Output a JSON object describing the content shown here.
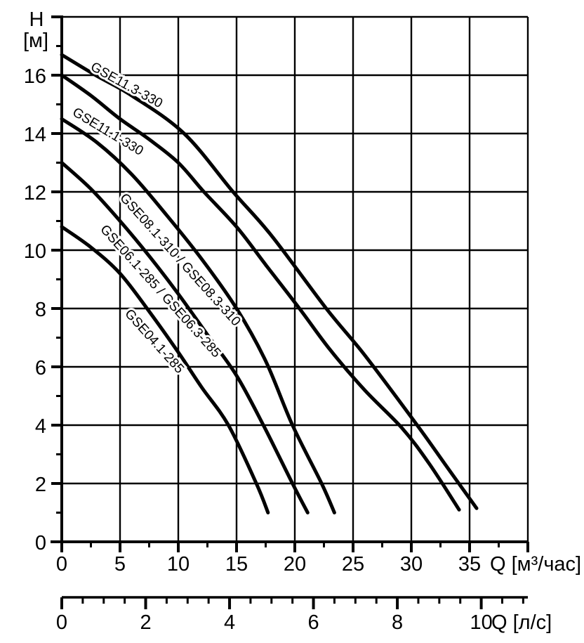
{
  "chart_data": {
    "type": "line",
    "title": "",
    "background": "#ffffff",
    "line_color": "#000000",
    "grid": true,
    "y_axis": {
      "title_line1": "H",
      "title_line2": "[м]",
      "min": 0,
      "max": 18,
      "major_step": 2,
      "minor_step": 1,
      "tick_labels": [
        "0",
        "2",
        "4",
        "6",
        "8",
        "10",
        "12",
        "14",
        "16"
      ]
    },
    "x_axis": {
      "title": "Q [м³/час]",
      "min": 0,
      "max": 40,
      "major_step": 5,
      "minor_step": 2.5,
      "tick_labels": [
        "0",
        "5",
        "10",
        "15",
        "20",
        "25",
        "30",
        "35"
      ]
    },
    "x_axis2": {
      "title": "Q [л/с]",
      "min": 0,
      "max": 11.11,
      "major_step": 2,
      "minor_step": 0.5,
      "unit_ratio": 3.6,
      "tick_labels": [
        "0",
        "2",
        "4",
        "6",
        "8",
        "10"
      ]
    },
    "series": [
      {
        "name": "GSE11.3-330",
        "points": [
          [
            0,
            16.7
          ],
          [
            2.9,
            16.0
          ],
          [
            6,
            15.3
          ],
          [
            10.5,
            14.0
          ],
          [
            14.7,
            12.0
          ],
          [
            18,
            10.5
          ],
          [
            22.7,
            8.0
          ],
          [
            26,
            6.4
          ],
          [
            30.5,
            4.0
          ],
          [
            33,
            2.6
          ],
          [
            35.6,
            1.15
          ]
        ],
        "label": {
          "text": "GSE11.3-330",
          "q": 2.4,
          "h": 16.2,
          "angle": 29
        }
      },
      {
        "name": "GSE11.1-330",
        "points": [
          [
            0,
            16.0
          ],
          [
            2.5,
            15.3
          ],
          [
            5,
            14.5
          ],
          [
            7.5,
            13.8
          ],
          [
            10,
            13.0
          ],
          [
            12.2,
            12.0
          ],
          [
            15,
            10.8
          ],
          [
            17.5,
            9.5
          ],
          [
            20.4,
            8.0
          ],
          [
            23,
            6.6
          ],
          [
            26,
            5.2
          ],
          [
            29.2,
            3.9
          ],
          [
            31.5,
            2.7
          ],
          [
            34.1,
            1.1
          ]
        ],
        "label": {
          "text": "GSE11.1-330",
          "q": 0.84,
          "h": 14.65,
          "angle": 31
        }
      },
      {
        "name": "GSE08.1-310 / GSE08.3-310",
        "points": [
          [
            0,
            14.5
          ],
          [
            3,
            13.7
          ],
          [
            6,
            12.6
          ],
          [
            9,
            11.2
          ],
          [
            12,
            9.7
          ],
          [
            15,
            8.0
          ],
          [
            17.5,
            6.2
          ],
          [
            19.8,
            4.0
          ],
          [
            22.3,
            2.0
          ],
          [
            23.4,
            1.0
          ]
        ],
        "label": {
          "text": "GSE08.1-310 / GSE08.3-310",
          "q": 4.94,
          "h": 11.78,
          "angle": 48
        }
      },
      {
        "name": "GSE06.1-285 / GSE06.3-285",
        "points": [
          [
            0,
            13.0
          ],
          [
            2.5,
            12.1
          ],
          [
            5,
            11.0
          ],
          [
            7.5,
            9.8
          ],
          [
            10,
            8.5
          ],
          [
            12.5,
            7.1
          ],
          [
            15,
            5.7
          ],
          [
            17.3,
            4.0
          ],
          [
            19.8,
            2.0
          ],
          [
            21.1,
            1.0
          ]
        ],
        "label": {
          "text": "GSE06.1-285 / GSE06.3-285",
          "q": 3.25,
          "h": 10.7,
          "angle": 48
        }
      },
      {
        "name": "GSE04.1-285",
        "points": [
          [
            0,
            10.8
          ],
          [
            2.5,
            10.1
          ],
          [
            5,
            9.2
          ],
          [
            7.5,
            7.9
          ],
          [
            10,
            6.5
          ],
          [
            12,
            5.3
          ],
          [
            14.3,
            4.0
          ],
          [
            16.7,
            2.0
          ],
          [
            17.7,
            1.0
          ]
        ],
        "label": {
          "text": "GSE04.1-285",
          "q": 5.36,
          "h": 7.81,
          "angle": 48
        }
      }
    ]
  }
}
